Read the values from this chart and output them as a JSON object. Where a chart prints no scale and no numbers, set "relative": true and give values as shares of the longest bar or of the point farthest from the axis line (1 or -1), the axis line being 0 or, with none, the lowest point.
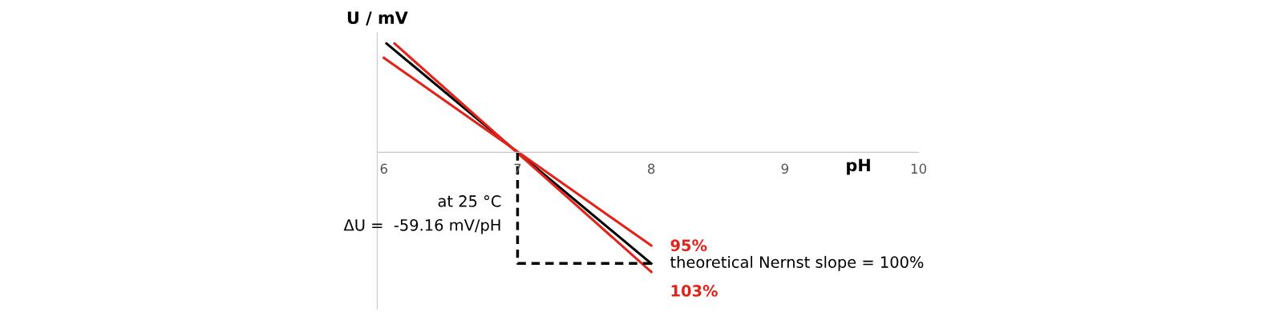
{
  "chart_data": {
    "type": "line",
    "relative": true,
    "xlabel": "pH",
    "ylabel": "U / mV",
    "xlim": [
      5.95,
      10
    ],
    "xticks": [
      6,
      7,
      8,
      9,
      10
    ],
    "grid": false,
    "legend": false,
    "series": [
      {
        "name": "theoretical Nernst slope = 100%",
        "color": "#000000",
        "x": [
          6.02,
          8
        ],
        "values": [
          0.91,
          -0.93
        ]
      },
      {
        "name": "95%",
        "color": "#e2231a",
        "x": [
          6,
          8
        ],
        "values": [
          0.79,
          -0.78
        ]
      },
      {
        "name": "103%",
        "color": "#e2231a",
        "x": [
          6.08,
          8
        ],
        "values": [
          0.91,
          -1
        ]
      },
      {
        "color": "#000000",
        "x": [
          7,
          7,
          8
        ],
        "values": [
          0,
          -0.93,
          -0.93
        ],
        "line_style": "dashed"
      }
    ],
    "annotations": [
      "at 25 °C",
      "ΔU =  -59.16 mV/pH"
    ]
  }
}
